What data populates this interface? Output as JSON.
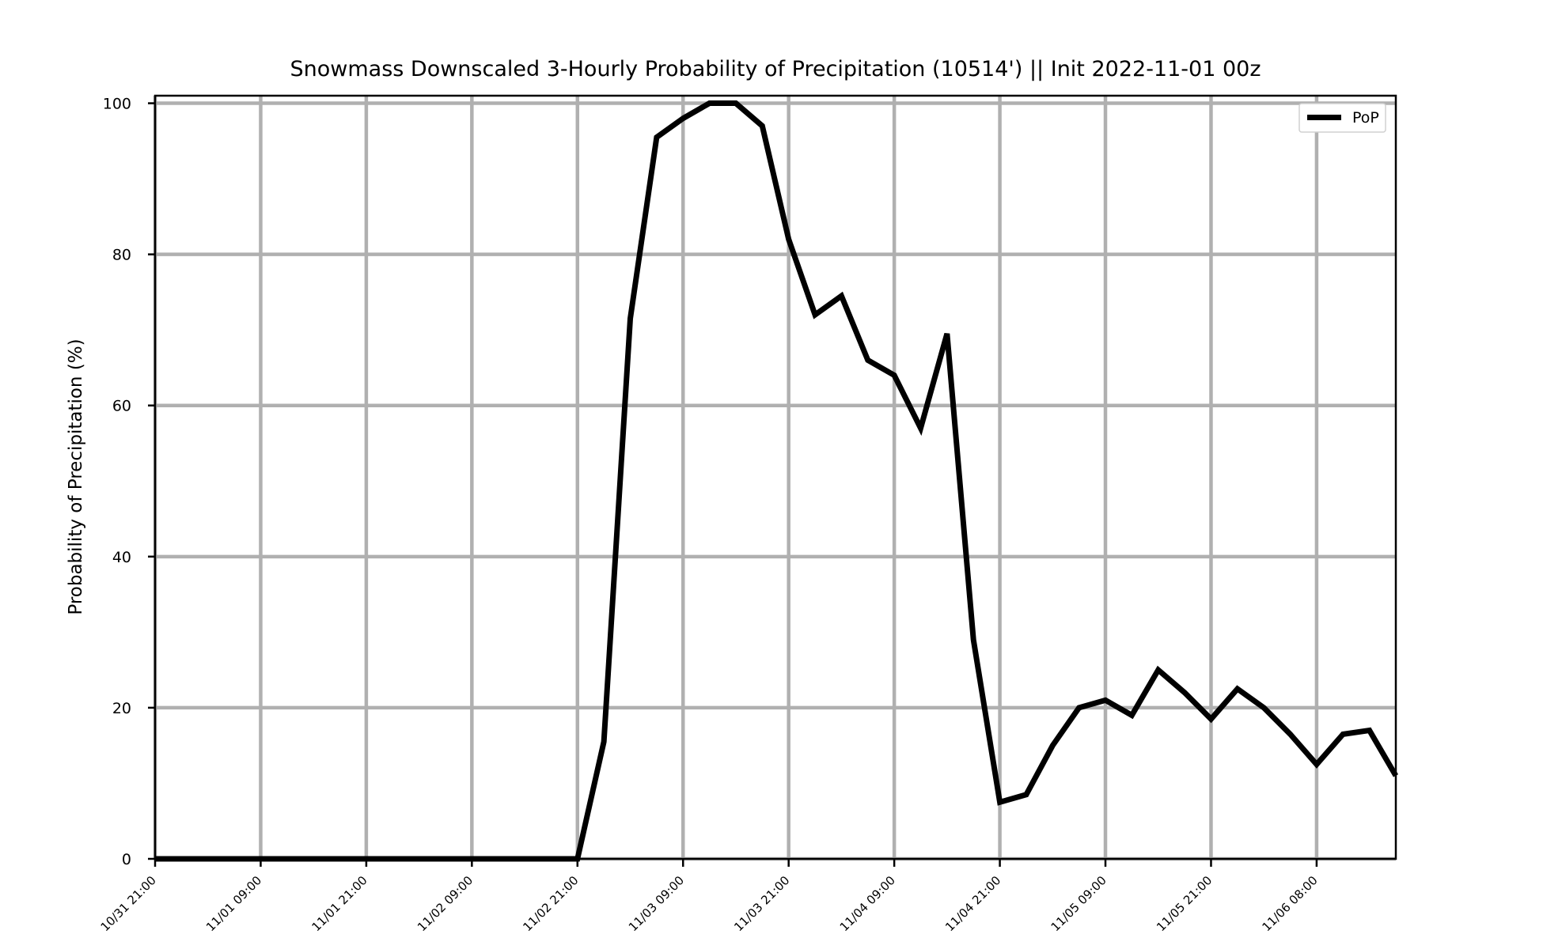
{
  "chart_data": {
    "type": "line",
    "title": "Snowmass Downscaled 3-Hourly Probability of Precipitation (10514') || Init 2022-11-01 00z",
    "xlabel": "",
    "ylabel": "Probability of Precipitation (%)",
    "ylim": [
      0,
      101
    ],
    "grid": true,
    "legend_position": "top-right",
    "yticks": [
      "0",
      "20",
      "40",
      "60",
      "80",
      "100"
    ],
    "xticks": [
      "10/31 21:00",
      "11/01 09:00",
      "11/01 21:00",
      "11/02 09:00",
      "11/02 21:00",
      "11/03 09:00",
      "11/03 21:00",
      "11/04 09:00",
      "11/04 21:00",
      "11/05 09:00",
      "11/05 21:00",
      "11/06 08:00"
    ],
    "colors": {
      "line": "#000000",
      "grid": "#b0b0b0",
      "axes": "#000000"
    },
    "series": [
      {
        "name": "PoP",
        "values": [
          0,
          0,
          0,
          0,
          0,
          0,
          0,
          0,
          0,
          0,
          0,
          0,
          0,
          0,
          0,
          0,
          0,
          15.5,
          71.5,
          95.5,
          98,
          100,
          100,
          97,
          82,
          72,
          74.5,
          66,
          64,
          57,
          69.5,
          29,
          7.5,
          8.5,
          15,
          20,
          21,
          19,
          25,
          22,
          18.5,
          22.5,
          20,
          16.5,
          12.5,
          16.5,
          17,
          11
        ]
      }
    ]
  }
}
